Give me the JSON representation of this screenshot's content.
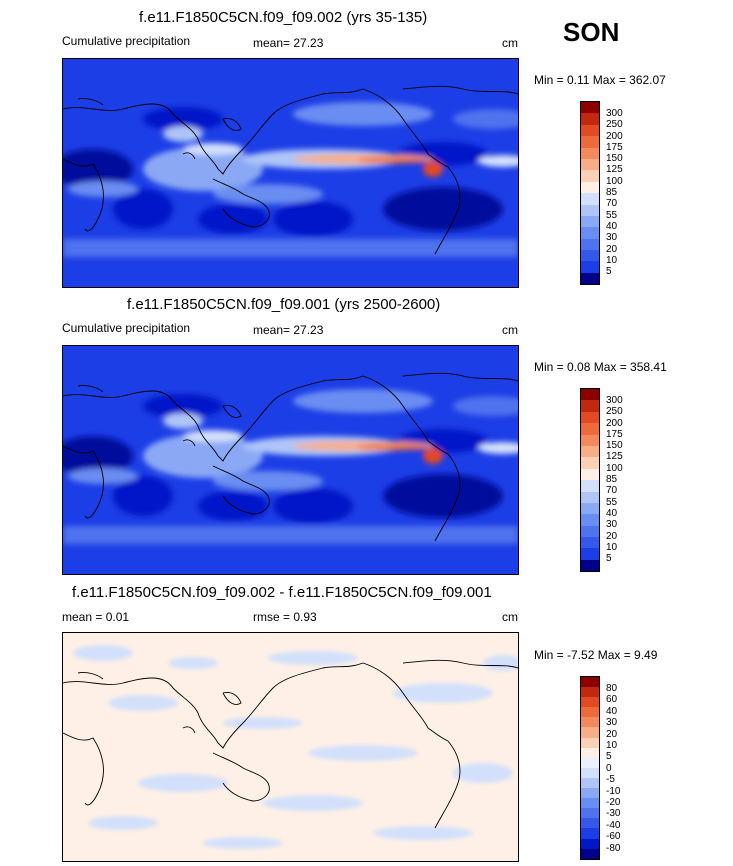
{
  "season": "SON",
  "colors": {
    "prec_scale": [
      "#000088",
      "#0018c8",
      "#1c3ee6",
      "#3358ea",
      "#4f72ee",
      "#6a8df2",
      "#8aa8f4",
      "#afc5f8",
      "#d3e0fb",
      "#fef0e6",
      "#fbd0b4",
      "#f7ad85",
      "#f28a5c",
      "#ec6a3c",
      "#e24a23",
      "#c2280d",
      "#8c0000"
    ],
    "diff_scale": [
      "#000088",
      "#0018c8",
      "#1c3ee6",
      "#3358ea",
      "#4f72ee",
      "#6a8df2",
      "#8aa8f4",
      "#afc5f8",
      "#d3e0fb",
      "#eaf1fc",
      "#fef0e6",
      "#fbd0b4",
      "#f7ad85",
      "#f28a5c",
      "#ec6a3c",
      "#e24a23",
      "#c2280d",
      "#8c0000"
    ],
    "coast": "#000000"
  },
  "panels": [
    {
      "title": "f.e11.F1850C5CN.f09_f09.002 (yrs 35-135)",
      "left_label": "Cumulative precipitation",
      "center_label": "mean=  27.23",
      "units": "cm",
      "minmax": "Min =   0.11 Max = 362.07",
      "colorbar_labels": [
        "300",
        "250",
        "200",
        "175",
        "150",
        "125",
        "100",
        "85",
        "70",
        "55",
        "40",
        "30",
        "20",
        "10",
        "5"
      ]
    },
    {
      "title": "f.e11.F1850C5CN.f09_f09.001 (yrs 2500-2600)",
      "left_label": "Cumulative precipitation",
      "center_label": "mean=  27.23",
      "units": "cm",
      "minmax": "Min =   0.08 Max = 358.41",
      "colorbar_labels": [
        "300",
        "250",
        "200",
        "175",
        "150",
        "125",
        "100",
        "85",
        "70",
        "55",
        "40",
        "30",
        "20",
        "10",
        "5"
      ]
    },
    {
      "title": "f.e11.F1850C5CN.f09_f09.002 - f.e11.F1850C5CN.f09_f09.001",
      "left_label": "mean =   0.01",
      "center_label": "rmse =   0.93",
      "units": "cm",
      "minmax": "Min =  -7.52 Max =   9.49",
      "colorbar_labels": [
        "80",
        "60",
        "40",
        "30",
        "20",
        "10",
        "5",
        "0",
        "-5",
        "-10",
        "-20",
        "-30",
        "-40",
        "-60",
        "-80"
      ]
    }
  ]
}
